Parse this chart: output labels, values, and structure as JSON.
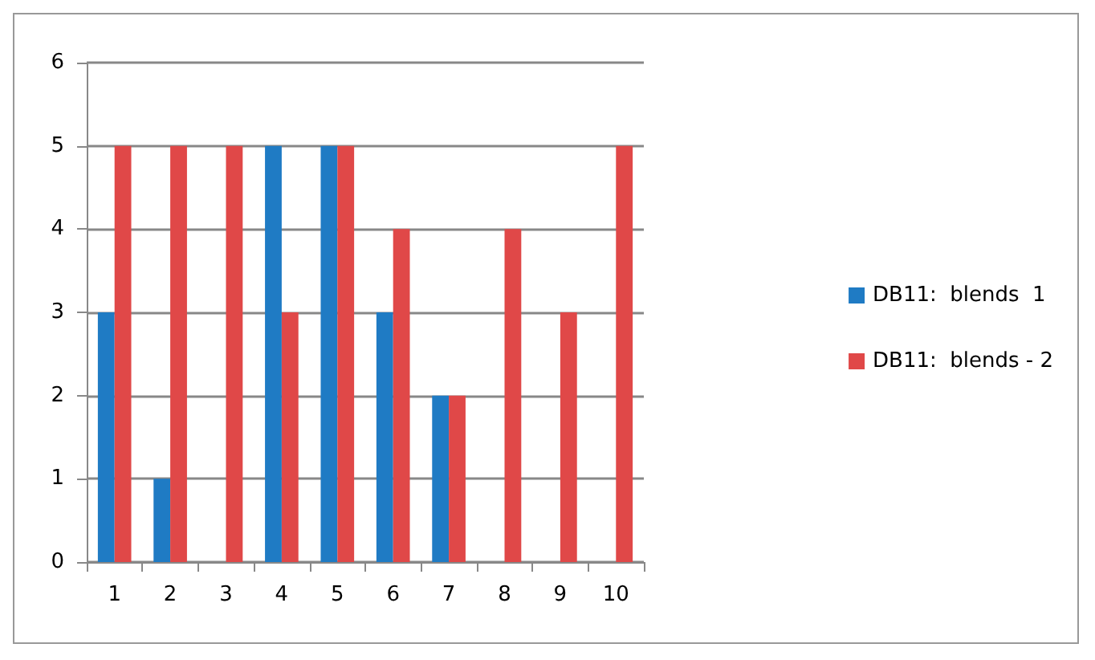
{
  "chart_data": {
    "type": "bar",
    "categories": [
      "1",
      "2",
      "3",
      "4",
      "5",
      "6",
      "7",
      "8",
      "9",
      "10"
    ],
    "series": [
      {
        "name": "DB11:  blends  1",
        "color": "#1f7bc4",
        "values": [
          3,
          1,
          0,
          5,
          5,
          3,
          2,
          0,
          0,
          0
        ]
      },
      {
        "name": "DB11:  blends - 2",
        "color": "#e04848",
        "values": [
          5,
          5,
          5,
          3,
          5,
          4,
          2,
          4,
          3,
          5
        ]
      }
    ],
    "ylim": [
      0,
      6
    ],
    "yticks": [
      0,
      1,
      2,
      3,
      4,
      5,
      6
    ],
    "grid": "y",
    "legend": "right"
  }
}
